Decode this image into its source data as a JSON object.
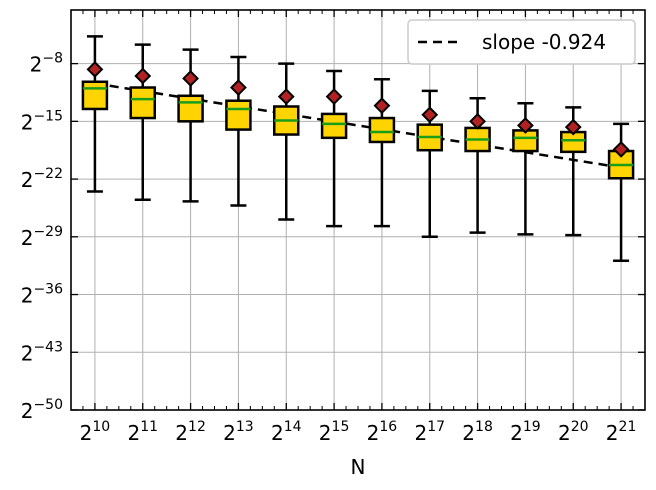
{
  "chart_data": {
    "type": "boxplot",
    "xlabel": "N",
    "ylabel": "",
    "x_log_base": 2,
    "y_log_base": 2,
    "categories": [
      "2^10",
      "2^11",
      "2^12",
      "2^13",
      "2^14",
      "2^15",
      "2^16",
      "2^17",
      "2^18",
      "2^19",
      "2^20",
      "2^21"
    ],
    "x_exponents": [
      10,
      11,
      12,
      13,
      14,
      15,
      16,
      17,
      18,
      19,
      20,
      21
    ],
    "y_tick_exponents": [
      -8,
      -15,
      -22,
      -29,
      -36,
      -43,
      -50
    ],
    "ylim_exponent": [
      -50,
      -1.5
    ],
    "grid": true,
    "boxes": [
      {
        "whislo": -23.5,
        "q1": -13.5,
        "median": -11.0,
        "q3": -10.2,
        "whishi": -4.7,
        "mean": -8.7
      },
      {
        "whislo": -24.5,
        "q1": -14.6,
        "median": -12.3,
        "q3": -10.9,
        "whishi": -5.7,
        "mean": -9.5
      },
      {
        "whislo": -24.7,
        "q1": -15.0,
        "median": -12.7,
        "q3": -11.9,
        "whishi": -6.3,
        "mean": -9.8
      },
      {
        "whislo": -25.2,
        "q1": -16.0,
        "median": -13.5,
        "q3": -12.5,
        "whishi": -7.2,
        "mean": -10.9
      },
      {
        "whislo": -26.9,
        "q1": -16.6,
        "median": -14.9,
        "q3": -13.2,
        "whishi": -8.0,
        "mean": -12.0
      },
      {
        "whislo": -27.7,
        "q1": -17.0,
        "median": -15.3,
        "q3": -14.1,
        "whishi": -8.9,
        "mean": -12.0
      },
      {
        "whislo": -27.7,
        "q1": -17.5,
        "median": -16.3,
        "q3": -14.6,
        "whishi": -9.9,
        "mean": -13.1
      },
      {
        "whislo": -29.0,
        "q1": -18.5,
        "median": -16.9,
        "q3": -15.4,
        "whishi": -11.3,
        "mean": -14.2
      },
      {
        "whislo": -28.5,
        "q1": -18.6,
        "median": -17.2,
        "q3": -15.8,
        "whishi": -12.2,
        "mean": -15.0
      },
      {
        "whislo": -28.7,
        "q1": -18.6,
        "median": -17.0,
        "q3": -16.1,
        "whishi": -12.8,
        "mean": -15.5
      },
      {
        "whislo": -28.8,
        "q1": -18.7,
        "median": -17.3,
        "q3": -16.3,
        "whishi": -13.3,
        "mean": -15.7
      },
      {
        "whislo": -31.9,
        "q1": -21.9,
        "median": -20.3,
        "q3": -18.6,
        "whishi": -15.3,
        "mean": -18.4
      }
    ],
    "fit_line": {
      "label": "slope -0.924",
      "slope": -0.924,
      "y_at_x10": -10.4,
      "y_at_x21": -20.6,
      "style": "dashed",
      "color": "#000000"
    },
    "legend": {
      "placement": "top-right",
      "entries": [
        "slope -0.924"
      ]
    },
    "colors": {
      "box_fill": "#FFD400",
      "box_edge": "#000000",
      "median": "#1a9e1a",
      "mean_marker": "#B22222",
      "grid": "#b0b0b0"
    }
  }
}
